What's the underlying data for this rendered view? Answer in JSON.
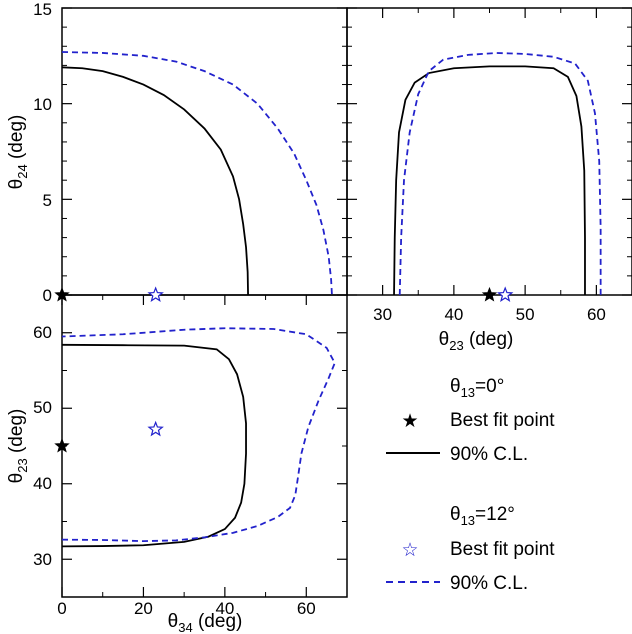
{
  "colors": {
    "set0": "#000000",
    "set12": "#2222cc",
    "frame": "#000000"
  },
  "chart_data": [
    {
      "type": "line",
      "panel": "theta34-theta24",
      "xlabel_base": "θ",
      "xlabel_sub": "34",
      "xlabel_unit": " (deg)",
      "ylabel_base": "θ",
      "ylabel_sub": "24",
      "ylabel_unit": " (deg)",
      "xlim": [
        0,
        70
      ],
      "ylim": [
        0,
        15
      ],
      "yticks": [
        "0",
        "5",
        "10",
        "15"
      ],
      "series": [
        {
          "style": "solid",
          "color": "#000000",
          "points": [
            [
              0,
              11.9
            ],
            [
              5,
              11.85
            ],
            [
              10,
              11.7
            ],
            [
              15,
              11.4
            ],
            [
              20,
              11.0
            ],
            [
              25,
              10.45
            ],
            [
              30,
              9.7
            ],
            [
              35,
              8.7
            ],
            [
              39,
              7.6
            ],
            [
              42,
              6.2
            ],
            [
              43.5,
              5.0
            ],
            [
              44.5,
              3.7
            ],
            [
              45.2,
              2.5
            ],
            [
              45.6,
              1.2
            ],
            [
              45.7,
              0
            ]
          ]
        },
        {
          "style": "dashed",
          "color": "#2222cc",
          "points": [
            [
              0,
              12.7
            ],
            [
              10,
              12.65
            ],
            [
              20,
              12.5
            ],
            [
              28,
              12.2
            ],
            [
              35,
              11.7
            ],
            [
              42,
              11.0
            ],
            [
              48,
              10.0
            ],
            [
              53,
              8.7
            ],
            [
              57,
              7.4
            ],
            [
              60,
              6.0
            ],
            [
              62.5,
              4.7
            ],
            [
              64.2,
              3.4
            ],
            [
              65.5,
              2.0
            ],
            [
              66.1,
              0.8
            ],
            [
              66.3,
              0
            ]
          ]
        }
      ],
      "best_fit": [
        {
          "x": 0,
          "y": 0,
          "marker": "filled-star",
          "color": "#000000"
        },
        {
          "x": 23,
          "y": 0,
          "marker": "open-star",
          "color": "#2222cc"
        }
      ]
    },
    {
      "type": "line",
      "panel": "theta23-theta24",
      "xlabel_base": "θ",
      "xlabel_sub": "23",
      "xlabel_unit": " (deg)",
      "xlim": [
        25,
        65
      ],
      "ylim": [
        0,
        15
      ],
      "xticks": [
        "30",
        "40",
        "50",
        "60"
      ],
      "series": [
        {
          "style": "solid",
          "color": "#000000",
          "points": [
            [
              31.6,
              0
            ],
            [
              31.7,
              3
            ],
            [
              31.9,
              6
            ],
            [
              32.3,
              8.5
            ],
            [
              33.2,
              10.2
            ],
            [
              34.5,
              11.1
            ],
            [
              36.5,
              11.6
            ],
            [
              40,
              11.85
            ],
            [
              45,
              11.95
            ],
            [
              50,
              11.95
            ],
            [
              54,
              11.85
            ],
            [
              56,
              11.4
            ],
            [
              57.2,
              10.4
            ],
            [
              57.9,
              8.8
            ],
            [
              58.3,
              6.5
            ],
            [
              58.4,
              3
            ],
            [
              58.4,
              0
            ]
          ]
        },
        {
          "style": "dashed",
          "color": "#2222cc",
          "points": [
            [
              32.4,
              0
            ],
            [
              32.6,
              3
            ],
            [
              33,
              6
            ],
            [
              33.8,
              8.5
            ],
            [
              35,
              10.5
            ],
            [
              36.5,
              11.7
            ],
            [
              38.5,
              12.3
            ],
            [
              42,
              12.55
            ],
            [
              46,
              12.65
            ],
            [
              50,
              12.6
            ],
            [
              54,
              12.45
            ],
            [
              57,
              12.1
            ],
            [
              58.8,
              11.2
            ],
            [
              59.8,
              9.5
            ],
            [
              60.4,
              7
            ],
            [
              60.6,
              3.5
            ],
            [
              60.6,
              0
            ]
          ]
        }
      ],
      "best_fit": [
        {
          "x": 45,
          "y": 0,
          "marker": "filled-star",
          "color": "#000000"
        },
        {
          "x": 47.2,
          "y": 0,
          "marker": "open-star",
          "color": "#2222cc"
        }
      ]
    },
    {
      "type": "line",
      "panel": "theta34-theta23",
      "xlabel_base": "θ",
      "xlabel_sub": "34",
      "xlabel_unit": " (deg)",
      "ylabel_base": "θ",
      "ylabel_sub": "23",
      "ylabel_unit": " (deg)",
      "xlim": [
        0,
        70
      ],
      "ylim": [
        25,
        65
      ],
      "xticks": [
        "0",
        "20",
        "40",
        "60"
      ],
      "yticks": [
        "30",
        "40",
        "50",
        "60"
      ],
      "series": [
        {
          "style": "solid",
          "color": "#000000",
          "points": [
            [
              0,
              31.7
            ],
            [
              10,
              31.75
            ],
            [
              20,
              31.85
            ],
            [
              30,
              32.3
            ],
            [
              36,
              33.0
            ],
            [
              40,
              34.0
            ],
            [
              42.5,
              35.5
            ],
            [
              44,
              37.5
            ],
            [
              44.8,
              40
            ],
            [
              45.2,
              44
            ],
            [
              45.2,
              48
            ],
            [
              44.5,
              51.5
            ],
            [
              43,
              54.5
            ],
            [
              41,
              56.5
            ],
            [
              38,
              57.8
            ],
            [
              30,
              58.3
            ],
            [
              15,
              58.35
            ],
            [
              0,
              58.4
            ]
          ]
        },
        {
          "style": "dashed",
          "color": "#2222cc",
          "points": [
            [
              0,
              32.6
            ],
            [
              10,
              32.55
            ],
            [
              20,
              32.4
            ],
            [
              28,
              32.5
            ],
            [
              35,
              32.9
            ],
            [
              42,
              33.5
            ],
            [
              48,
              34.4
            ],
            [
              53,
              35.6
            ],
            [
              56,
              36.8
            ],
            [
              57.3,
              38.5
            ],
            [
              58,
              41
            ],
            [
              58.8,
              44
            ],
            [
              60.5,
              47.5
            ],
            [
              63,
              51
            ],
            [
              65.5,
              54
            ],
            [
              67,
              56
            ],
            [
              65,
              58
            ],
            [
              60,
              59.8
            ],
            [
              52,
              60.5
            ],
            [
              40,
              60.6
            ],
            [
              30,
              60.4
            ],
            [
              15,
              59.8
            ],
            [
              0,
              59.5
            ]
          ]
        }
      ],
      "best_fit": [
        {
          "x": 0,
          "y": 45,
          "marker": "filled-star",
          "color": "#000000"
        },
        {
          "x": 23,
          "y": 47.2,
          "marker": "open-star",
          "color": "#2222cc"
        }
      ]
    }
  ],
  "legend": {
    "group0": {
      "title_base": "θ",
      "title_sub": "13",
      "title_rest": "=0°",
      "best_fit": "Best fit point",
      "cl": "90% C.L."
    },
    "group12": {
      "title_base": "θ",
      "title_sub": "13",
      "title_rest": "=12°",
      "best_fit": "Best fit point",
      "cl": "90% C.L."
    }
  }
}
